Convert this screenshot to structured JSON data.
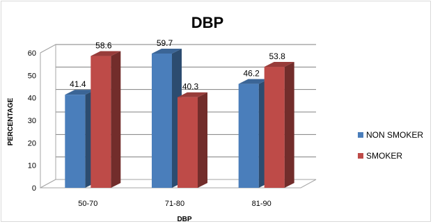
{
  "chart_data": {
    "type": "bar",
    "title": "DBP",
    "xlabel": "DBP",
    "ylabel": "PERCENTAGE",
    "categories": [
      "50-70",
      "71-80",
      "81-90"
    ],
    "series": [
      {
        "name": "NON SMOKER",
        "values": [
          41.4,
          59.7,
          46.2
        ],
        "color": "#4a7ebb"
      },
      {
        "name": "SMOKER",
        "values": [
          58.6,
          40.3,
          53.8
        ],
        "color": "#be4b48"
      }
    ],
    "data_labels": [
      [
        "41.4",
        "59.7",
        "46.2"
      ],
      [
        "58.6",
        "40.3",
        "53.8"
      ]
    ],
    "ylim": [
      0,
      60
    ],
    "yticks": [
      0,
      10,
      20,
      30,
      40,
      50,
      60
    ],
    "grid": true,
    "legend_position": "right"
  }
}
